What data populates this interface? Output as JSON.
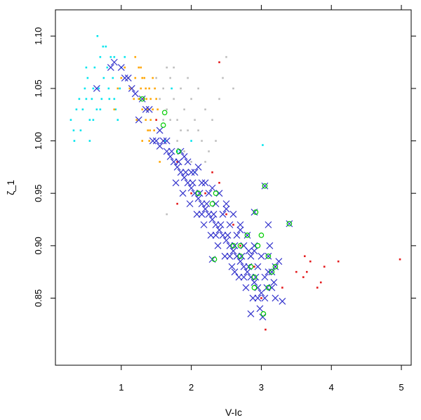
{
  "chart_data": {
    "type": "scatter",
    "xlabel": "V-Ic",
    "ylabel": "ζ_1",
    "xlim": [
      0.06,
      5.14
    ],
    "ylim": [
      0.786,
      1.125
    ],
    "xticks": [
      "1",
      "2",
      "3",
      "4",
      "5"
    ],
    "xtick_values": [
      1,
      2,
      3,
      4,
      5
    ],
    "yticks": [
      "0.85",
      "0.90",
      "0.95",
      "1.00",
      "1.05",
      "1.10"
    ],
    "ytick_values": [
      0.85,
      0.9,
      0.95,
      1.0,
      1.05,
      1.1
    ],
    "grid": false,
    "legend": "none",
    "series": [
      {
        "color": "#00e5ee",
        "marker": "dot",
        "points": [
          [
            0.28,
            1.02
          ],
          [
            0.32,
            1.01
          ],
          [
            0.33,
            1.0
          ],
          [
            0.36,
            1.03
          ],
          [
            0.4,
            1.04
          ],
          [
            0.45,
            1.03
          ],
          [
            0.48,
            1.05
          ],
          [
            0.5,
            1.04
          ],
          [
            0.52,
            1.06
          ],
          [
            0.55,
            1.02
          ],
          [
            0.58,
            1.04
          ],
          [
            0.6,
            1.05
          ],
          [
            0.62,
            1.07
          ],
          [
            0.65,
            1.03
          ],
          [
            0.68,
            1.05
          ],
          [
            0.7,
            1.08
          ],
          [
            0.72,
            1.04
          ],
          [
            0.75,
            1.06
          ],
          [
            0.78,
            1.09
          ],
          [
            0.8,
            1.07
          ],
          [
            0.82,
            1.05
          ],
          [
            0.85,
            1.08
          ],
          [
            0.88,
            1.06
          ],
          [
            0.9,
            1.04
          ],
          [
            0.92,
            1.03
          ],
          [
            0.95,
            1.02
          ],
          [
            0.98,
            1.05
          ],
          [
            1.0,
            1.07
          ],
          [
            1.05,
            1.08
          ],
          [
            1.1,
            1.06
          ],
          [
            0.55,
            1.0
          ],
          [
            0.6,
            1.02
          ],
          [
            0.7,
            1.03
          ],
          [
            0.42,
            1.01
          ],
          [
            0.5,
            1.07
          ],
          [
            0.66,
            1.1
          ],
          [
            0.74,
            1.09
          ],
          [
            0.83,
            1.04
          ],
          [
            0.9,
            1.08
          ],
          [
            1.62,
            1.0
          ],
          [
            1.72,
            1.05
          ],
          [
            2.0,
            1.0
          ],
          [
            3.02,
            0.996
          ],
          [
            1.8,
            0.99
          ],
          [
            2.05,
            0.97
          ]
        ]
      },
      {
        "color": "#ffa500",
        "marker": "dot",
        "points": [
          [
            1.05,
            1.07
          ],
          [
            1.1,
            1.06
          ],
          [
            1.15,
            1.05
          ],
          [
            1.2,
            1.06
          ],
          [
            1.25,
            1.04
          ],
          [
            1.28,
            1.05
          ],
          [
            1.3,
            1.06
          ],
          [
            1.32,
            1.04
          ],
          [
            1.35,
            1.05
          ],
          [
            1.38,
            1.03
          ],
          [
            1.4,
            1.05
          ],
          [
            1.42,
            1.04
          ],
          [
            1.45,
            1.03
          ],
          [
            1.48,
            1.05
          ],
          [
            1.5,
            1.02
          ],
          [
            1.35,
            1.02
          ],
          [
            1.4,
            1.0
          ],
          [
            1.3,
            1.03
          ],
          [
            1.25,
            1.07
          ],
          [
            1.2,
            1.08
          ],
          [
            1.18,
            1.04
          ],
          [
            1.22,
            1.02
          ],
          [
            1.45,
            1.06
          ],
          [
            1.5,
            1.04
          ],
          [
            1.42,
            1.02
          ],
          [
            1.38,
            1.01
          ],
          [
            1.33,
            1.06
          ],
          [
            1.28,
            1.07
          ],
          [
            1.47,
            1.01
          ],
          [
            1.52,
            1.03
          ],
          [
            0.9,
            1.03
          ],
          [
            0.95,
            1.05
          ],
          [
            1.6,
            1.0
          ],
          [
            1.55,
            0.98
          ],
          [
            1.3,
            1.0
          ],
          [
            1.0,
            1.06
          ],
          [
            1.12,
            1.05
          ],
          [
            1.41,
            1.01
          ],
          [
            1.36,
            1.04
          ]
        ]
      },
      {
        "color": "#bebebe",
        "marker": "dot",
        "points": [
          [
            1.5,
            1.06
          ],
          [
            1.55,
            1.04
          ],
          [
            1.6,
            1.05
          ],
          [
            1.65,
            1.03
          ],
          [
            1.7,
            1.06
          ],
          [
            1.75,
            1.04
          ],
          [
            1.8,
            1.02
          ],
          [
            1.85,
            1.05
          ],
          [
            1.9,
            1.03
          ],
          [
            1.95,
            1.01
          ],
          [
            2.0,
            1.04
          ],
          [
            2.05,
            1.02
          ],
          [
            2.1,
            1.05
          ],
          [
            2.15,
            1.0
          ],
          [
            2.2,
            1.03
          ],
          [
            2.25,
            0.99
          ],
          [
            2.3,
            1.02
          ],
          [
            2.35,
            1.0
          ],
          [
            2.4,
            1.04
          ],
          [
            1.7,
            1.02
          ],
          [
            1.8,
            1.0
          ],
          [
            1.9,
            0.99
          ],
          [
            2.0,
            0.98
          ],
          [
            1.65,
            1.07
          ],
          [
            1.75,
            1.07
          ],
          [
            1.6,
            1.02
          ],
          [
            1.55,
            1.01
          ],
          [
            1.85,
            1.01
          ],
          [
            1.95,
            1.06
          ],
          [
            2.1,
            1.01
          ],
          [
            2.2,
            0.98
          ],
          [
            2.45,
            1.06
          ],
          [
            2.5,
            1.08
          ],
          [
            1.65,
            0.93
          ],
          [
            2.6,
            1.05
          ]
        ]
      },
      {
        "color": "#e41a1c",
        "marker": "dot",
        "points": [
          [
            2.4,
            1.075
          ],
          [
            1.5,
            1.02
          ],
          [
            1.8,
            0.98
          ],
          [
            2.3,
            0.97
          ],
          [
            2.0,
            0.95
          ],
          [
            2.5,
            0.93
          ],
          [
            2.7,
            0.9
          ],
          [
            3.2,
            0.88
          ],
          [
            3.5,
            0.875
          ],
          [
            3.6,
            0.87
          ],
          [
            3.65,
            0.875
          ],
          [
            3.7,
            0.885
          ],
          [
            3.8,
            0.86
          ],
          [
            3.85,
            0.865
          ],
          [
            4.1,
            0.885
          ],
          [
            4.98,
            0.887
          ],
          [
            3.62,
            0.89
          ],
          [
            3.06,
            0.82
          ],
          [
            1.8,
            0.94
          ],
          [
            2.2,
            0.95
          ],
          [
            3.0,
            0.85
          ],
          [
            2.9,
            0.88
          ],
          [
            3.3,
            0.86
          ],
          [
            2.6,
            0.92
          ],
          [
            2.4,
            0.96
          ],
          [
            3.9,
            0.88
          ]
        ]
      },
      {
        "color": "#3333cc",
        "marker": "cross",
        "points": [
          [
            0.65,
            1.05
          ],
          [
            0.85,
            1.07
          ],
          [
            0.9,
            1.075
          ],
          [
            1.0,
            1.07
          ],
          [
            1.05,
            1.06
          ],
          [
            1.1,
            1.06
          ],
          [
            1.15,
            1.05
          ],
          [
            1.2,
            1.045
          ],
          [
            1.3,
            1.04
          ],
          [
            1.35,
            1.03
          ],
          [
            1.25,
            1.02
          ],
          [
            1.4,
            1.03
          ],
          [
            1.45,
            1.0
          ],
          [
            1.5,
            1.0
          ],
          [
            1.55,
            1.01
          ],
          [
            1.6,
            1.0
          ],
          [
            1.65,
            0.99
          ],
          [
            1.7,
            0.985
          ],
          [
            1.75,
            0.98
          ],
          [
            1.8,
            0.975
          ],
          [
            1.85,
            0.97
          ],
          [
            1.9,
            0.965
          ],
          [
            1.95,
            0.96
          ],
          [
            2.0,
            0.955
          ],
          [
            2.05,
            0.95
          ],
          [
            2.1,
            0.945
          ],
          [
            2.15,
            0.94
          ],
          [
            2.2,
            0.935
          ],
          [
            2.25,
            0.93
          ],
          [
            2.3,
            0.925
          ],
          [
            2.35,
            0.92
          ],
          [
            2.4,
            0.915
          ],
          [
            2.45,
            0.91
          ],
          [
            2.5,
            0.905
          ],
          [
            2.55,
            0.9
          ],
          [
            2.6,
            0.895
          ],
          [
            2.65,
            0.89
          ],
          [
            2.7,
            0.885
          ],
          [
            2.75,
            0.88
          ],
          [
            2.8,
            0.875
          ],
          [
            2.85,
            0.87
          ],
          [
            2.9,
            0.865
          ],
          [
            2.95,
            0.86
          ],
          [
            3.0,
            0.855
          ],
          [
            3.05,
            0.85
          ],
          [
            1.72,
            0.99
          ],
          [
            1.82,
            0.98
          ],
          [
            1.92,
            0.97
          ],
          [
            2.02,
            0.96
          ],
          [
            2.12,
            0.95
          ],
          [
            2.22,
            0.94
          ],
          [
            2.32,
            0.93
          ],
          [
            2.42,
            0.92
          ],
          [
            2.52,
            0.91
          ],
          [
            2.62,
            0.9
          ],
          [
            2.72,
            0.89
          ],
          [
            2.82,
            0.88
          ],
          [
            2.92,
            0.87
          ],
          [
            1.78,
            0.96
          ],
          [
            1.88,
            0.95
          ],
          [
            1.98,
            0.94
          ],
          [
            2.08,
            0.93
          ],
          [
            2.18,
            0.92
          ],
          [
            2.28,
            0.91
          ],
          [
            2.38,
            0.9
          ],
          [
            2.48,
            0.89
          ],
          [
            2.58,
            0.88
          ],
          [
            2.68,
            0.87
          ],
          [
            2.78,
            0.86
          ],
          [
            2.88,
            0.85
          ],
          [
            2.98,
            0.84
          ],
          [
            1.95,
            0.98
          ],
          [
            2.05,
            0.97
          ],
          [
            2.15,
            0.96
          ],
          [
            2.25,
            0.95
          ],
          [
            2.35,
            0.94
          ],
          [
            2.45,
            0.93
          ],
          [
            2.55,
            0.92
          ],
          [
            2.65,
            0.91
          ],
          [
            2.75,
            0.9
          ],
          [
            2.85,
            0.89
          ],
          [
            2.95,
            0.88
          ],
          [
            3.05,
            0.87
          ],
          [
            3.15,
            0.86
          ],
          [
            3.2,
            0.85
          ],
          [
            3.3,
            0.847
          ],
          [
            2.85,
            0.835
          ],
          [
            3.02,
            0.832
          ],
          [
            2.3,
            0.887
          ],
          [
            3.05,
            0.957
          ],
          [
            2.9,
            0.932
          ],
          [
            3.1,
            0.92
          ],
          [
            3.4,
            0.921
          ],
          [
            3.1,
            0.89
          ],
          [
            3.15,
            0.875
          ],
          [
            3.2,
            0.88
          ],
          [
            3.25,
            0.885
          ],
          [
            2.6,
            0.93
          ],
          [
            2.7,
            0.92
          ],
          [
            2.8,
            0.91
          ],
          [
            2.9,
            0.9
          ],
          [
            3.0,
            0.89
          ],
          [
            2.5,
            0.94
          ],
          [
            2.4,
            0.95
          ],
          [
            2.2,
            0.96
          ],
          [
            2.0,
            0.97
          ],
          [
            1.9,
            0.985
          ],
          [
            2.1,
            0.975
          ],
          [
            2.3,
            0.955
          ],
          [
            2.5,
            0.935
          ],
          [
            2.7,
            0.915
          ],
          [
            2.9,
            0.895
          ],
          [
            3.1,
            0.875
          ],
          [
            1.85,
            0.99
          ],
          [
            1.65,
            1.0
          ],
          [
            1.55,
            0.995
          ],
          [
            2.15,
            0.93
          ],
          [
            2.35,
            0.91
          ],
          [
            2.55,
            0.89
          ],
          [
            2.75,
            0.87
          ],
          [
            2.95,
            0.85
          ],
          [
            3.08,
            0.86
          ],
          [
            3.12,
            0.9
          ],
          [
            3.18,
            0.865
          ],
          [
            2.62,
            0.875
          ],
          [
            2.82,
            0.895
          ]
        ]
      },
      {
        "color": "#00cd00",
        "marker": "circle",
        "points": [
          [
            1.3,
            1.04
          ],
          [
            1.6,
            1.015
          ],
          [
            1.62,
            1.027
          ],
          [
            1.82,
            0.99
          ],
          [
            2.1,
            0.95
          ],
          [
            2.3,
            0.94
          ],
          [
            2.35,
            0.95
          ],
          [
            2.7,
            0.89
          ],
          [
            2.8,
            0.91
          ],
          [
            2.85,
            0.88
          ],
          [
            2.95,
            0.9
          ],
          [
            3.0,
            0.91
          ],
          [
            3.05,
            0.957
          ],
          [
            2.92,
            0.932
          ],
          [
            3.4,
            0.921
          ],
          [
            2.33,
            0.887
          ],
          [
            3.1,
            0.89
          ],
          [
            3.15,
            0.875
          ],
          [
            3.2,
            0.88
          ],
          [
            2.9,
            0.86
          ],
          [
            3.03,
            0.835
          ],
          [
            3.1,
            0.86
          ],
          [
            2.6,
            0.9
          ],
          [
            2.7,
            0.9
          ],
          [
            2.9,
            0.87
          ]
        ]
      }
    ]
  }
}
